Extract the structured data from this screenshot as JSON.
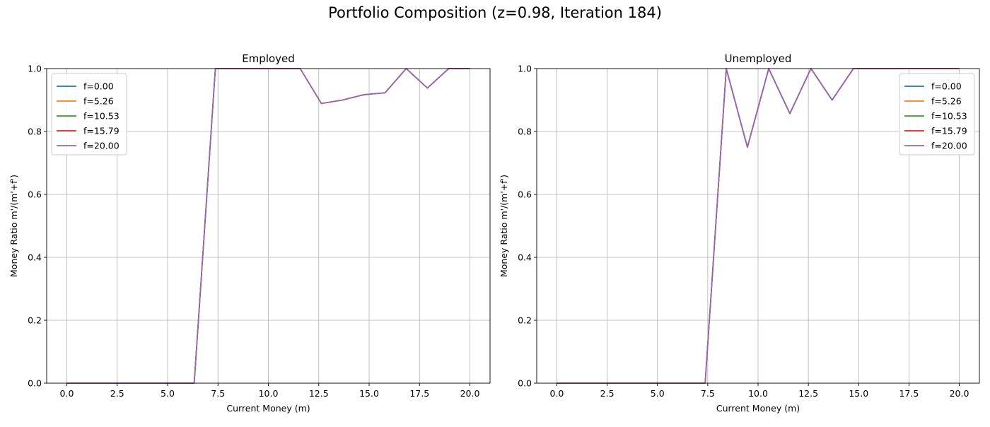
{
  "figure": {
    "suptitle": "Portfolio Composition (z=0.98, Iteration 184)"
  },
  "chart_data": [
    {
      "type": "line",
      "title": "Employed",
      "xlabel": "Current Money (m)",
      "ylabel": "Money Ratio m'/(m'+f')",
      "xlim": [
        -1.0,
        21.0
      ],
      "ylim": [
        0.0,
        1.0
      ],
      "xticks": [
        0.0,
        2.5,
        5.0,
        7.5,
        10.0,
        12.5,
        15.0,
        17.5,
        20.0
      ],
      "xtick_labels": [
        "0.0",
        "2.5",
        "5.0",
        "7.5",
        "10.0",
        "12.5",
        "15.0",
        "17.5",
        "20.0"
      ],
      "yticks": [
        0.0,
        0.2,
        0.4,
        0.6,
        0.8,
        1.0
      ],
      "ytick_labels": [
        "0.0",
        "0.2",
        "0.4",
        "0.6",
        "0.8",
        "1.0"
      ],
      "grid": true,
      "legend_position": "upper-left",
      "x": [
        0.0,
        1.05,
        2.11,
        3.16,
        4.21,
        5.26,
        6.32,
        7.37,
        8.42,
        9.47,
        10.53,
        11.58,
        12.63,
        13.68,
        14.74,
        15.79,
        16.84,
        17.89,
        18.95,
        20.0
      ],
      "series": [
        {
          "name": "f=0.00",
          "color": "#1f77b4",
          "values": [
            0,
            0,
            0,
            0,
            0,
            0,
            0,
            1.0,
            1.0,
            1.0,
            1.0,
            1.0,
            0.889,
            0.9,
            0.917,
            0.923,
            1.0,
            0.938,
            1.0,
            1.0
          ]
        },
        {
          "name": "f=5.26",
          "color": "#ff7f0e",
          "values": [
            0,
            0,
            0,
            0,
            0,
            0,
            0,
            1.0,
            1.0,
            1.0,
            1.0,
            1.0,
            0.889,
            0.9,
            0.917,
            0.923,
            1.0,
            0.938,
            1.0,
            1.0
          ]
        },
        {
          "name": "f=10.53",
          "color": "#2ca02c",
          "values": [
            0,
            0,
            0,
            0,
            0,
            0,
            0,
            1.0,
            1.0,
            1.0,
            1.0,
            1.0,
            0.889,
            0.9,
            0.917,
            0.923,
            1.0,
            0.938,
            1.0,
            1.0
          ]
        },
        {
          "name": "f=15.79",
          "color": "#d62728",
          "values": [
            0,
            0,
            0,
            0,
            0,
            0,
            0,
            1.0,
            1.0,
            1.0,
            1.0,
            1.0,
            0.889,
            0.9,
            0.917,
            0.923,
            1.0,
            0.938,
            1.0,
            1.0
          ]
        },
        {
          "name": "f=20.00",
          "color": "#9467bd",
          "values": [
            0,
            0,
            0,
            0,
            0,
            0,
            0,
            1.0,
            1.0,
            1.0,
            1.0,
            1.0,
            0.889,
            0.9,
            0.917,
            0.923,
            1.0,
            0.938,
            1.0,
            1.0
          ]
        }
      ]
    },
    {
      "type": "line",
      "title": "Unemployed",
      "xlabel": "Current Money (m)",
      "ylabel": "Money Ratio m'/(m'+f')",
      "xlim": [
        -1.0,
        21.0
      ],
      "ylim": [
        0.0,
        1.0
      ],
      "xticks": [
        0.0,
        2.5,
        5.0,
        7.5,
        10.0,
        12.5,
        15.0,
        17.5,
        20.0
      ],
      "xtick_labels": [
        "0.0",
        "2.5",
        "5.0",
        "7.5",
        "10.0",
        "12.5",
        "15.0",
        "17.5",
        "20.0"
      ],
      "yticks": [
        0.0,
        0.2,
        0.4,
        0.6,
        0.8,
        1.0
      ],
      "ytick_labels": [
        "0.0",
        "0.2",
        "0.4",
        "0.6",
        "0.8",
        "1.0"
      ],
      "grid": true,
      "legend_position": "upper-right",
      "x": [
        0.0,
        1.05,
        2.11,
        3.16,
        4.21,
        5.26,
        6.32,
        7.37,
        8.42,
        9.47,
        10.53,
        11.58,
        12.63,
        13.68,
        14.74,
        15.79,
        16.84,
        17.89,
        18.95,
        20.0
      ],
      "series": [
        {
          "name": "f=0.00",
          "color": "#1f77b4",
          "values": [
            0,
            0,
            0,
            0,
            0,
            0,
            0,
            0,
            1.0,
            0.75,
            1.0,
            0.857,
            1.0,
            0.9,
            1.0,
            1.0,
            1.0,
            1.0,
            1.0,
            1.0
          ]
        },
        {
          "name": "f=5.26",
          "color": "#ff7f0e",
          "values": [
            0,
            0,
            0,
            0,
            0,
            0,
            0,
            0,
            1.0,
            0.75,
            1.0,
            0.857,
            1.0,
            0.9,
            1.0,
            1.0,
            1.0,
            1.0,
            1.0,
            1.0
          ]
        },
        {
          "name": "f=10.53",
          "color": "#2ca02c",
          "values": [
            0,
            0,
            0,
            0,
            0,
            0,
            0,
            0,
            1.0,
            0.75,
            1.0,
            0.857,
            1.0,
            0.9,
            1.0,
            1.0,
            1.0,
            1.0,
            1.0,
            1.0
          ]
        },
        {
          "name": "f=15.79",
          "color": "#d62728",
          "values": [
            0,
            0,
            0,
            0,
            0,
            0,
            0,
            0,
            1.0,
            0.75,
            1.0,
            0.857,
            1.0,
            0.9,
            1.0,
            1.0,
            1.0,
            1.0,
            1.0,
            1.0
          ]
        },
        {
          "name": "f=20.00",
          "color": "#9467bd",
          "values": [
            0,
            0,
            0,
            0,
            0,
            0,
            0,
            0,
            1.0,
            0.75,
            1.0,
            0.857,
            1.0,
            0.9,
            1.0,
            1.0,
            1.0,
            1.0,
            1.0,
            1.0
          ]
        }
      ]
    }
  ]
}
